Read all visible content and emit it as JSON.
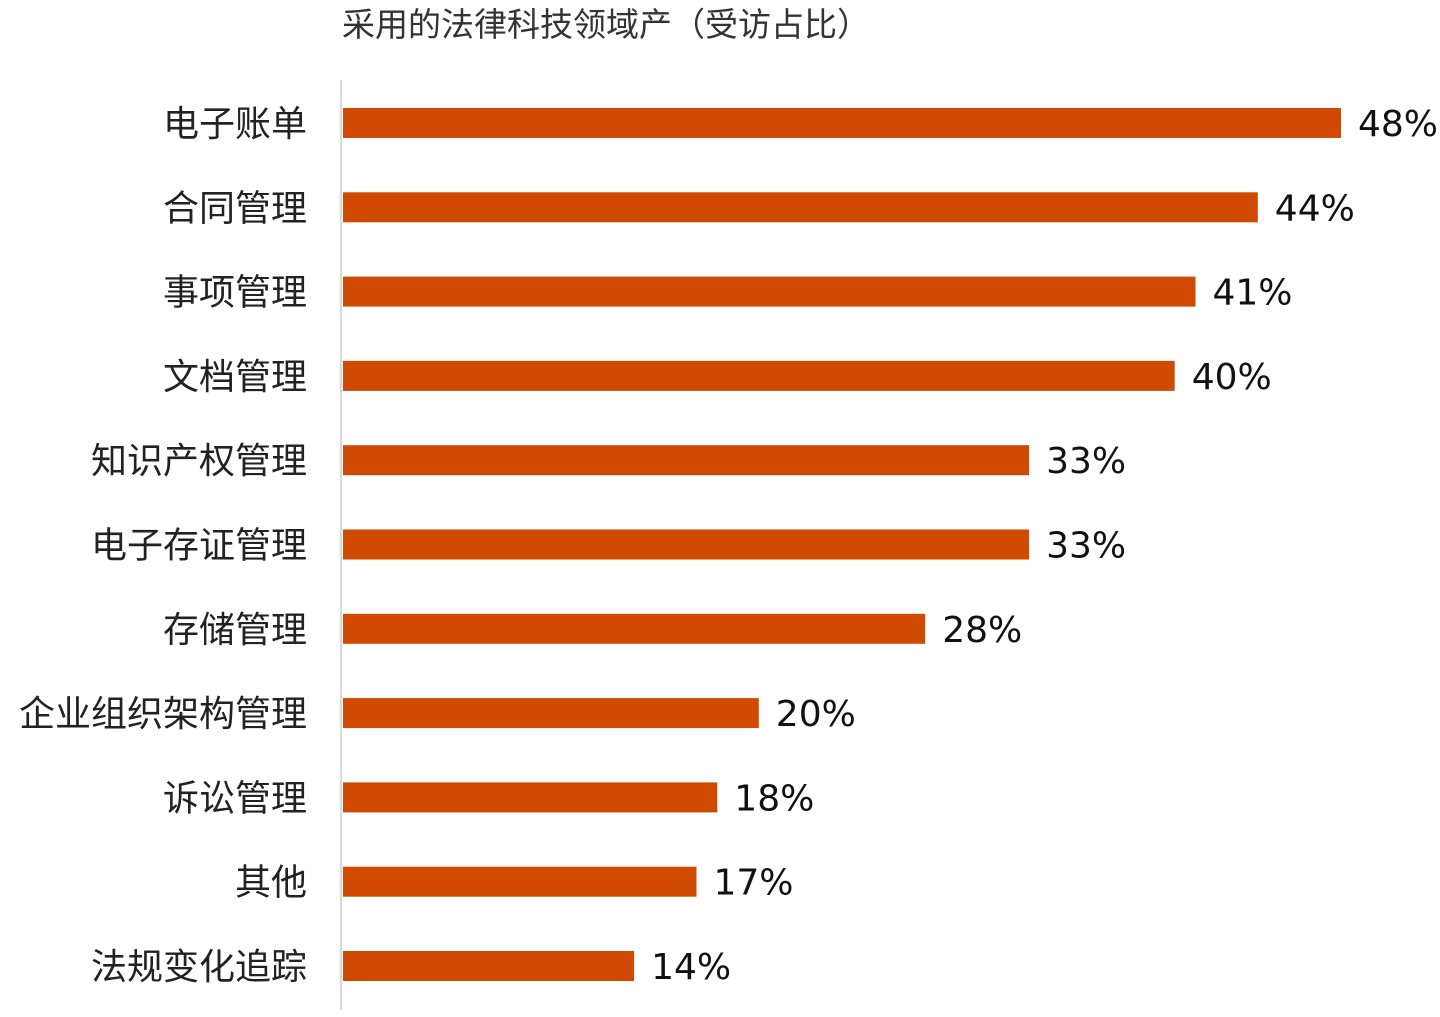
{
  "chart_data": {
    "type": "bar",
    "orientation": "horizontal",
    "title": "采用的法律科技领域产（受访占比）",
    "categories": [
      "电子账单",
      "合同管理",
      "事项管理",
      "文档管理",
      "知识产权管理",
      "电子存证管理",
      "存储管理",
      "企业组织架构管理",
      "诉讼管理",
      "其他",
      "法规变化追踪"
    ],
    "values": [
      48,
      44,
      41,
      40,
      33,
      33,
      28,
      20,
      18,
      17,
      14
    ],
    "value_labels": [
      "48%",
      "44%",
      "41%",
      "40%",
      "33%",
      "33%",
      "28%",
      "20%",
      "18%",
      "17%",
      "14%"
    ],
    "unit": "%",
    "xlim": [
      0,
      48
    ],
    "bar_color": "#D04A02",
    "axis_color": "#D9D9D9",
    "grid": false,
    "legend": "none"
  }
}
